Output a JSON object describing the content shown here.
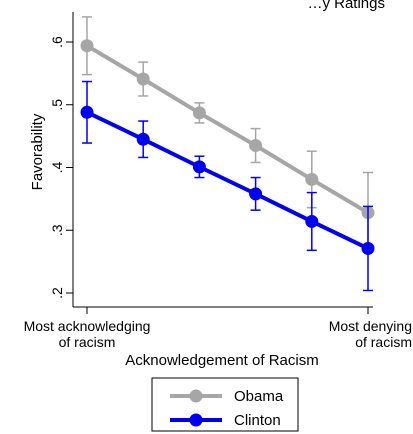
{
  "chart_data": {
    "type": "line",
    "title": "…y Ratings",
    "xlabel": "Acknowledgement of Racism",
    "ylabel": "Favorability",
    "x": [
      1,
      2,
      3,
      4,
      5,
      6
    ],
    "xlim": [
      1,
      6
    ],
    "ylim": [
      0.2,
      0.65
    ],
    "x_tick_labels": [
      {
        "x": 1,
        "lines": [
          "Most acknowledging",
          "of racism"
        ]
      },
      {
        "x": 6,
        "lines": [
          "Most denying",
          "of racism"
        ]
      }
    ],
    "y_ticks": [
      0.2,
      0.3,
      0.4,
      0.5,
      0.6
    ],
    "y_tick_labels": [
      ".2",
      ".3",
      ".4",
      ".5",
      ".6"
    ],
    "grid": false,
    "legend_position": "bottom-center",
    "series": [
      {
        "name": "Obama",
        "color": "#a6a6a6",
        "values": [
          0.594,
          0.541,
          0.487,
          0.435,
          0.381,
          0.328
        ],
        "ci_low": [
          0.548,
          0.514,
          0.471,
          0.408,
          0.336,
          0.265
        ],
        "ci_high": [
          0.64,
          0.568,
          0.503,
          0.462,
          0.426,
          0.392
        ]
      },
      {
        "name": "Clinton",
        "color": "#0000ee",
        "values": [
          0.488,
          0.445,
          0.401,
          0.358,
          0.314,
          0.271
        ],
        "ci_low": [
          0.439,
          0.416,
          0.384,
          0.332,
          0.268,
          0.204
        ],
        "ci_high": [
          0.537,
          0.474,
          0.418,
          0.384,
          0.36,
          0.338
        ]
      }
    ]
  }
}
